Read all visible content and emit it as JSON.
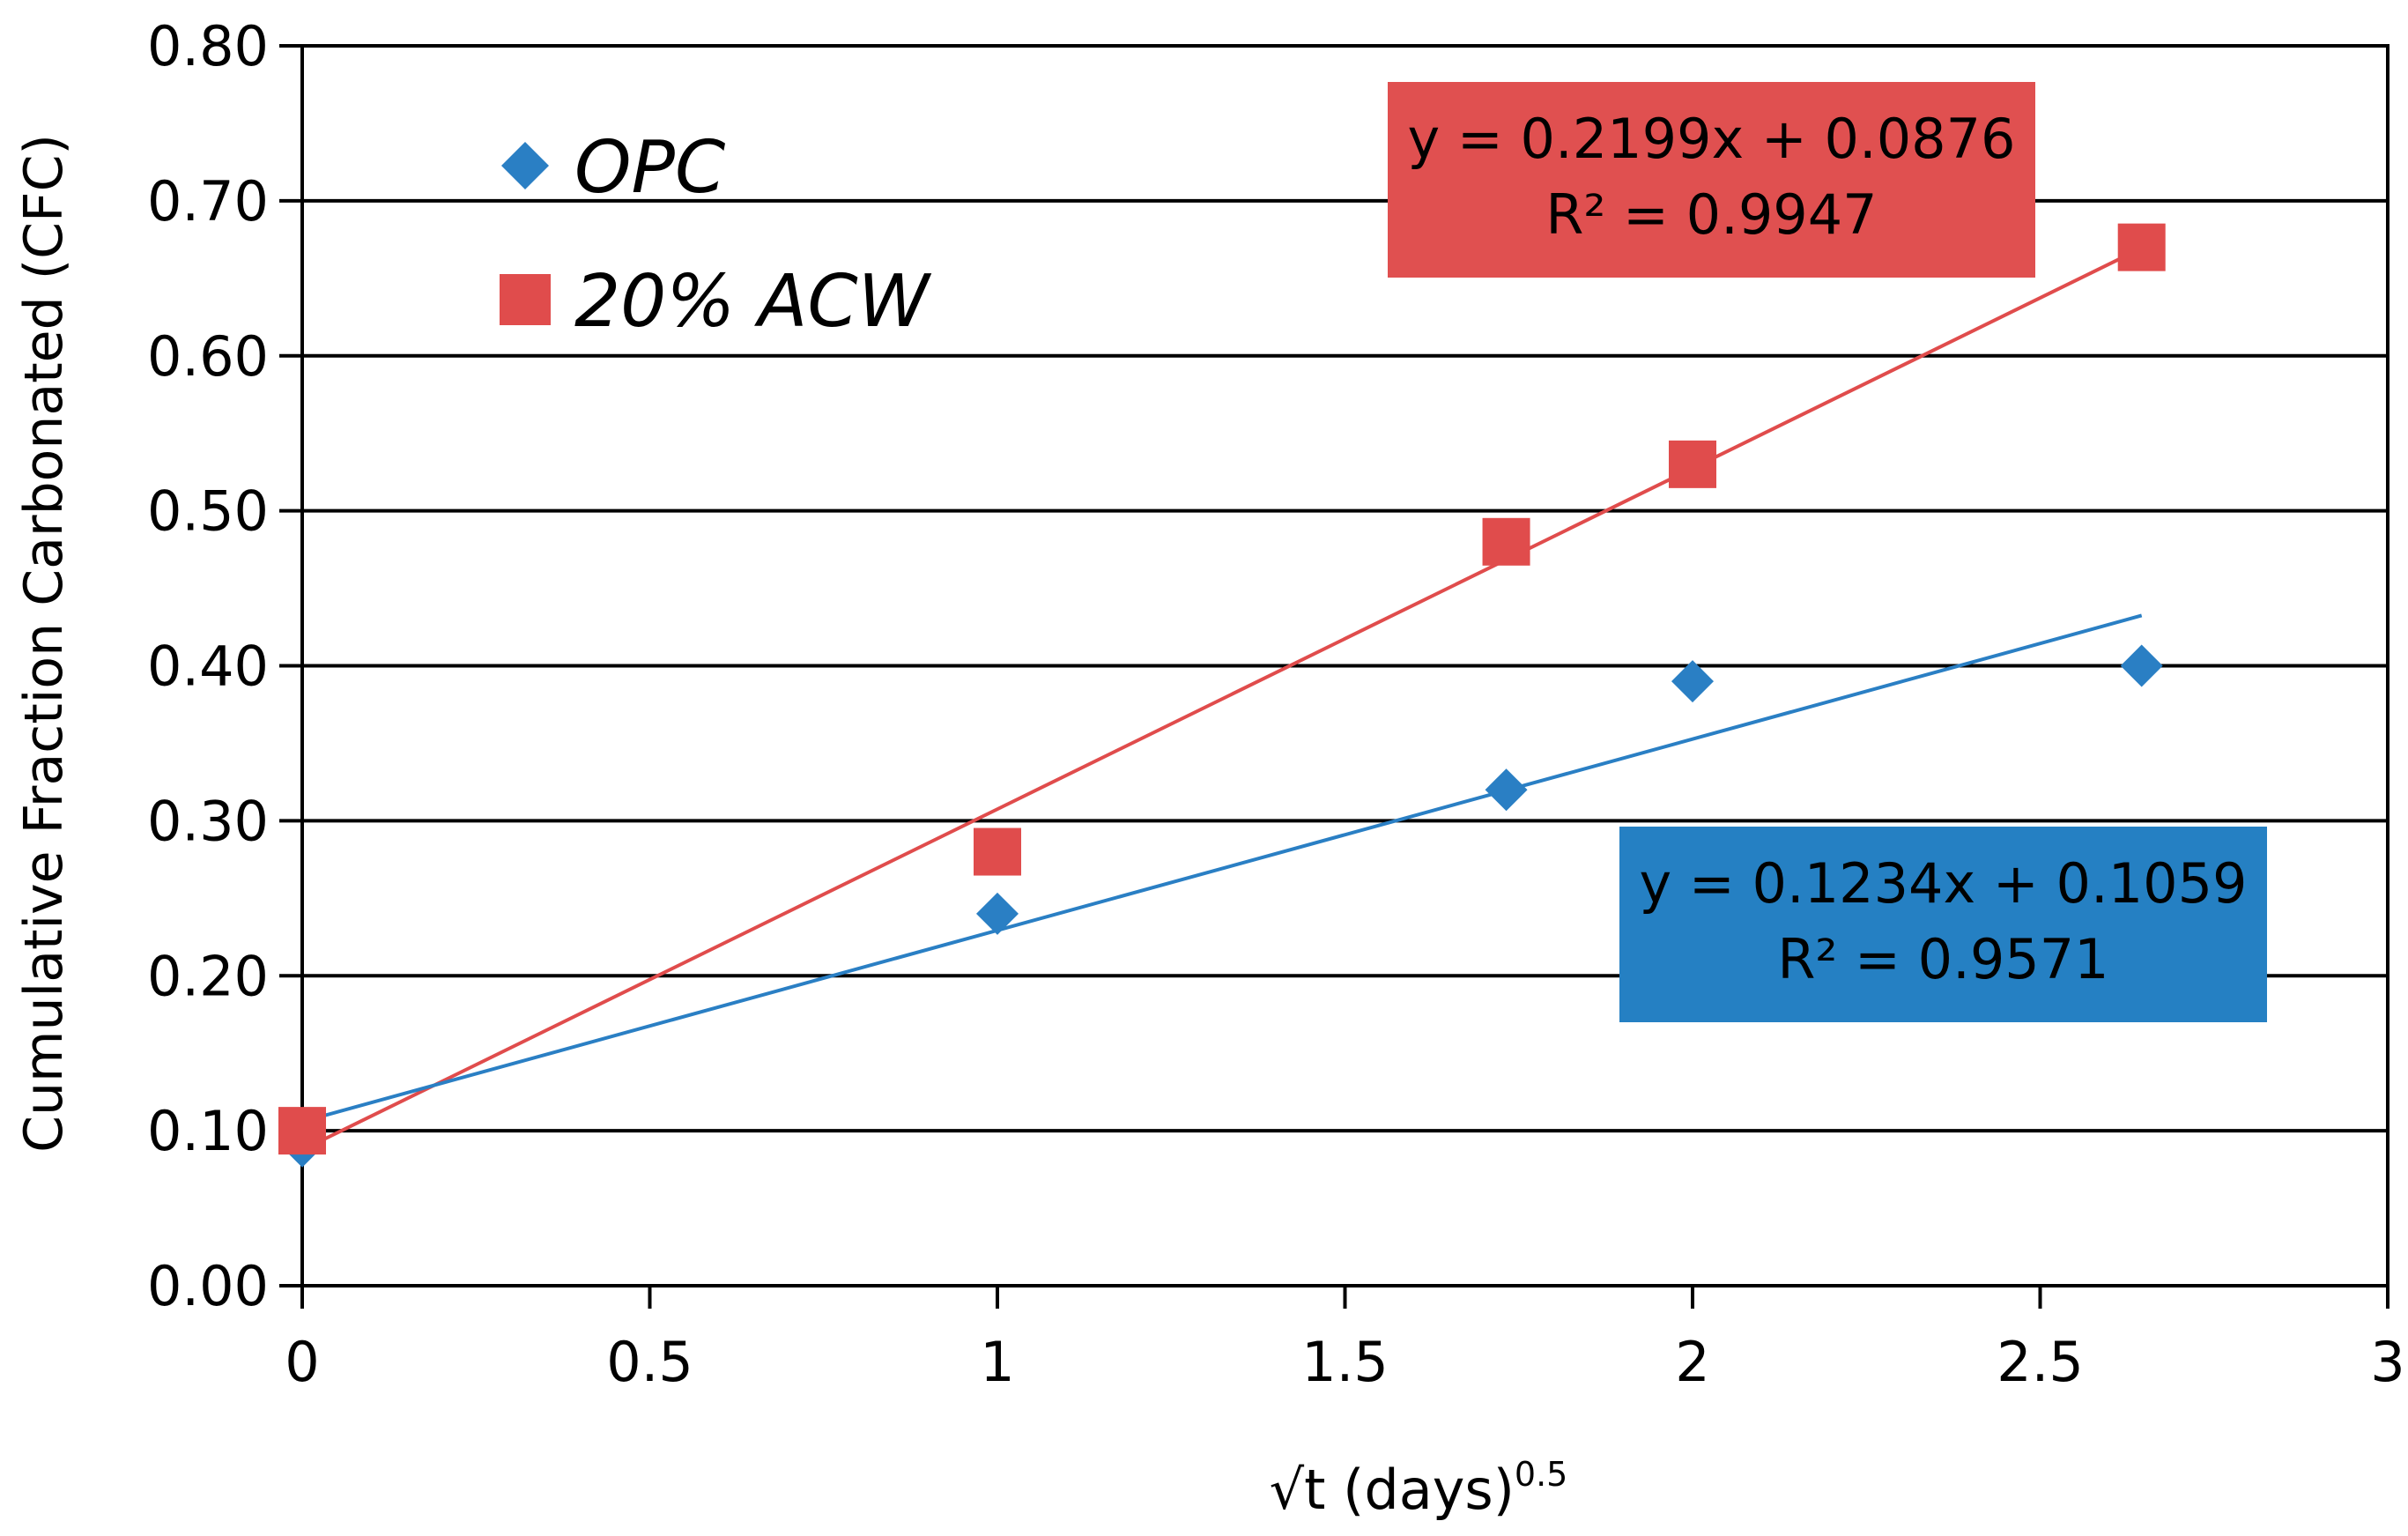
{
  "chart_data": {
    "type": "scatter",
    "title": "",
    "xlabel": "√t (days)",
    "xlabel_superscript": "0.5",
    "ylabel": "Cumulative Fraction Carbonated (CFC)",
    "xlim": [
      0,
      3
    ],
    "ylim": [
      0,
      0.8
    ],
    "xticks": [
      "0",
      "0.5",
      "1",
      "1.5",
      "2",
      "2.5",
      "3"
    ],
    "xtick_values": [
      0,
      0.5,
      1,
      1.5,
      2,
      2.5,
      3
    ],
    "yticks": [
      "0.00",
      "0.10",
      "0.20",
      "0.30",
      "0.40",
      "0.50",
      "0.60",
      "0.70",
      "0.80"
    ],
    "ytick_values": [
      0,
      0.1,
      0.2,
      0.3,
      0.4,
      0.5,
      0.6,
      0.7,
      0.8
    ],
    "grid": "horizontal",
    "legend_position": "top-left",
    "series": [
      {
        "name": "OPC",
        "marker": "diamond",
        "color": "#2a7fc4",
        "x": [
          0,
          1,
          1.732,
          2,
          2.646
        ],
        "y": [
          0.09,
          0.24,
          0.32,
          0.39,
          0.4
        ],
        "trendline": {
          "slope": 0.1234,
          "intercept": 0.1059,
          "x_range": [
            0,
            2.646
          ]
        },
        "equation": "y = 0.1234x + 0.1059",
        "r_squared": "R² = 0.9571",
        "box_color": "#2580c3"
      },
      {
        "name": "20% ACW",
        "marker": "square",
        "color": "#e04c4c",
        "x": [
          0,
          1,
          1.732,
          2,
          2.646
        ],
        "y": [
          0.1,
          0.28,
          0.48,
          0.53,
          0.67
        ],
        "trendline": {
          "slope": 0.2199,
          "intercept": 0.0876,
          "x_range": [
            0,
            2.646
          ]
        },
        "equation": "y = 0.2199x + 0.0876",
        "r_squared": "R² = 0.9947",
        "box_color": "#e05050"
      }
    ]
  }
}
